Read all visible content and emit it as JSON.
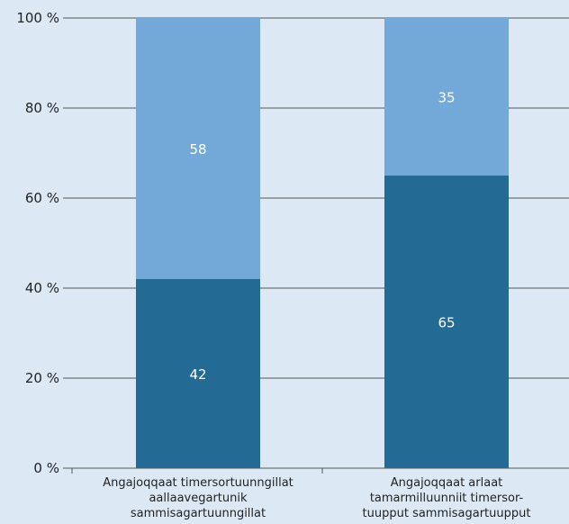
{
  "chart_data": {
    "type": "bar",
    "stacked": true,
    "categories": [
      [
        "Angajoqqaat timersortuunngillat",
        "aallaavegartunik",
        "sammisagartuunngillat"
      ],
      [
        "Angajoqqaat arlaat",
        "tamarmilluunniit timersor-",
        "tuupput sammisagartuupput"
      ]
    ],
    "series": [
      {
        "values": [
          42,
          65
        ],
        "color": "#236a94"
      },
      {
        "values": [
          58,
          35
        ],
        "color": "#73a9d8"
      }
    ],
    "yticks": [
      "0 %",
      "20 %",
      "40 %",
      "60 %",
      "80 %",
      "100 %"
    ],
    "ylim": [
      0,
      100
    ],
    "grid": true,
    "gridColor": "#555555",
    "background": "#dce9f5",
    "labelColor": "#ffffff"
  }
}
